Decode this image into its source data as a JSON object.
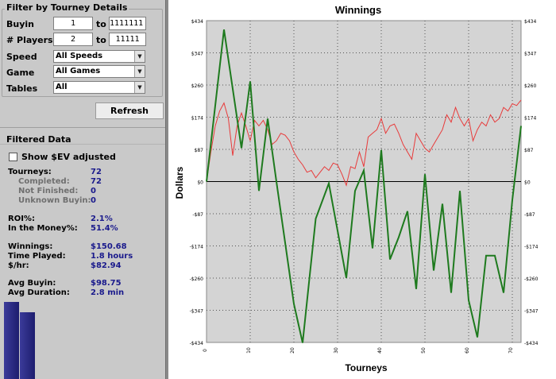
{
  "filter": {
    "title": "Filter by Tourney Details",
    "buyin": {
      "label": "Buyin",
      "from": "1",
      "to_label": "to",
      "to": "1111111"
    },
    "players": {
      "label": "# Players",
      "from": "2",
      "to_label": "to",
      "to": "11111"
    },
    "speed": {
      "label": "Speed",
      "value": "All Speeds"
    },
    "game": {
      "label": "Game",
      "value": "All Games"
    },
    "tables": {
      "label": "Tables",
      "value": "All"
    }
  },
  "refresh_label": "Refresh",
  "filtered": {
    "title": "Filtered Data",
    "show_ev_label": "Show $EV adjusted",
    "show_ev_checked": false,
    "stats": {
      "tourneys": {
        "label": "Tourneys:",
        "value": "72"
      },
      "completed": {
        "label": "Completed:",
        "value": "72"
      },
      "not_finished": {
        "label": "Not Finished:",
        "value": "0"
      },
      "unknown_buyin": {
        "label": "Unknown Buyin:",
        "value": "0"
      },
      "roi": {
        "label": "ROI%:",
        "value": "2.1%"
      },
      "itm": {
        "label": "In the Money%:",
        "value": "51.4%"
      },
      "winnings": {
        "label": "Winnings:",
        "value": "$150.68"
      },
      "time_played": {
        "label": "Time Played:",
        "value": "1.8 hours"
      },
      "per_hour": {
        "label": "$/hr:",
        "value": "$82.94"
      },
      "avg_buyin": {
        "label": "Avg Buyin:",
        "value": "$98.75"
      },
      "avg_duration": {
        "label": "Avg Duration:",
        "value": "2.8 min"
      }
    }
  },
  "colors": {
    "panel_bg": "#c9c9c9",
    "plot_bg": "#d4d4d4",
    "stat_value": "#1a1a8c",
    "series_green": "#1e7a1e",
    "series_red": "#e83a3a",
    "side_bar": "#2a2a80"
  },
  "side_bars": [
    {
      "level": 0.23
    },
    {
      "level": 0.2
    }
  ],
  "chart_data": {
    "type": "line",
    "title": "Winnings",
    "xlabel": "Tourneys",
    "ylabel": "Dollars",
    "y_ticks": [
      "$434",
      "$347",
      "$260",
      "$174",
      "$87",
      "$0",
      "-$87",
      "-$174",
      "-$260",
      "-$347",
      "-$434"
    ],
    "x_ticks": [
      "0",
      "10",
      "20",
      "30",
      "40",
      "50",
      "60",
      "70"
    ],
    "ylim": [
      -434,
      434
    ],
    "xlim": [
      0,
      72
    ],
    "grid": true,
    "zero_line": true,
    "series": [
      {
        "color": "#1e7a1e",
        "x": [
          0,
          4,
          8,
          10,
          12,
          14,
          16,
          20,
          22,
          25,
          28,
          32,
          34,
          36,
          38,
          40,
          42,
          44,
          46,
          48,
          50,
          52,
          54,
          56,
          58,
          60,
          62,
          64,
          66,
          68,
          70,
          72
        ],
        "y": [
          0,
          410,
          90,
          270,
          -25,
          170,
          0,
          -330,
          -435,
          -100,
          -5,
          -260,
          -25,
          30,
          -180,
          85,
          -210,
          -150,
          -80,
          -290,
          20,
          -240,
          -60,
          -300,
          -25,
          -320,
          -420,
          -200,
          -200,
          -300,
          -50,
          150
        ]
      },
      {
        "color": "#e83a3a",
        "x": [
          0,
          1,
          2,
          3,
          4,
          5,
          6,
          7,
          8,
          9,
          10,
          11,
          12,
          13,
          14,
          15,
          16,
          17,
          18,
          19,
          20,
          21,
          22,
          23,
          24,
          25,
          26,
          27,
          28,
          29,
          30,
          31,
          32,
          33,
          34,
          35,
          36,
          37,
          38,
          39,
          40,
          41,
          42,
          43,
          44,
          45,
          46,
          47,
          48,
          49,
          50,
          51,
          52,
          53,
          54,
          55,
          56,
          57,
          58,
          59,
          60,
          61,
          62,
          63,
          64,
          65,
          66,
          67,
          68,
          69,
          70,
          71,
          72
        ],
        "y": [
          0,
          80,
          150,
          190,
          212,
          170,
          70,
          150,
          185,
          150,
          110,
          165,
          150,
          165,
          140,
          100,
          110,
          130,
          125,
          110,
          80,
          60,
          45,
          25,
          30,
          10,
          25,
          40,
          30,
          50,
          45,
          20,
          -10,
          40,
          35,
          80,
          40,
          120,
          130,
          140,
          170,
          130,
          150,
          155,
          130,
          100,
          80,
          60,
          130,
          110,
          90,
          80,
          100,
          120,
          140,
          180,
          160,
          200,
          170,
          150,
          170,
          110,
          140,
          160,
          150,
          180,
          160,
          170,
          200,
          190,
          210,
          205,
          220
        ]
      }
    ]
  }
}
